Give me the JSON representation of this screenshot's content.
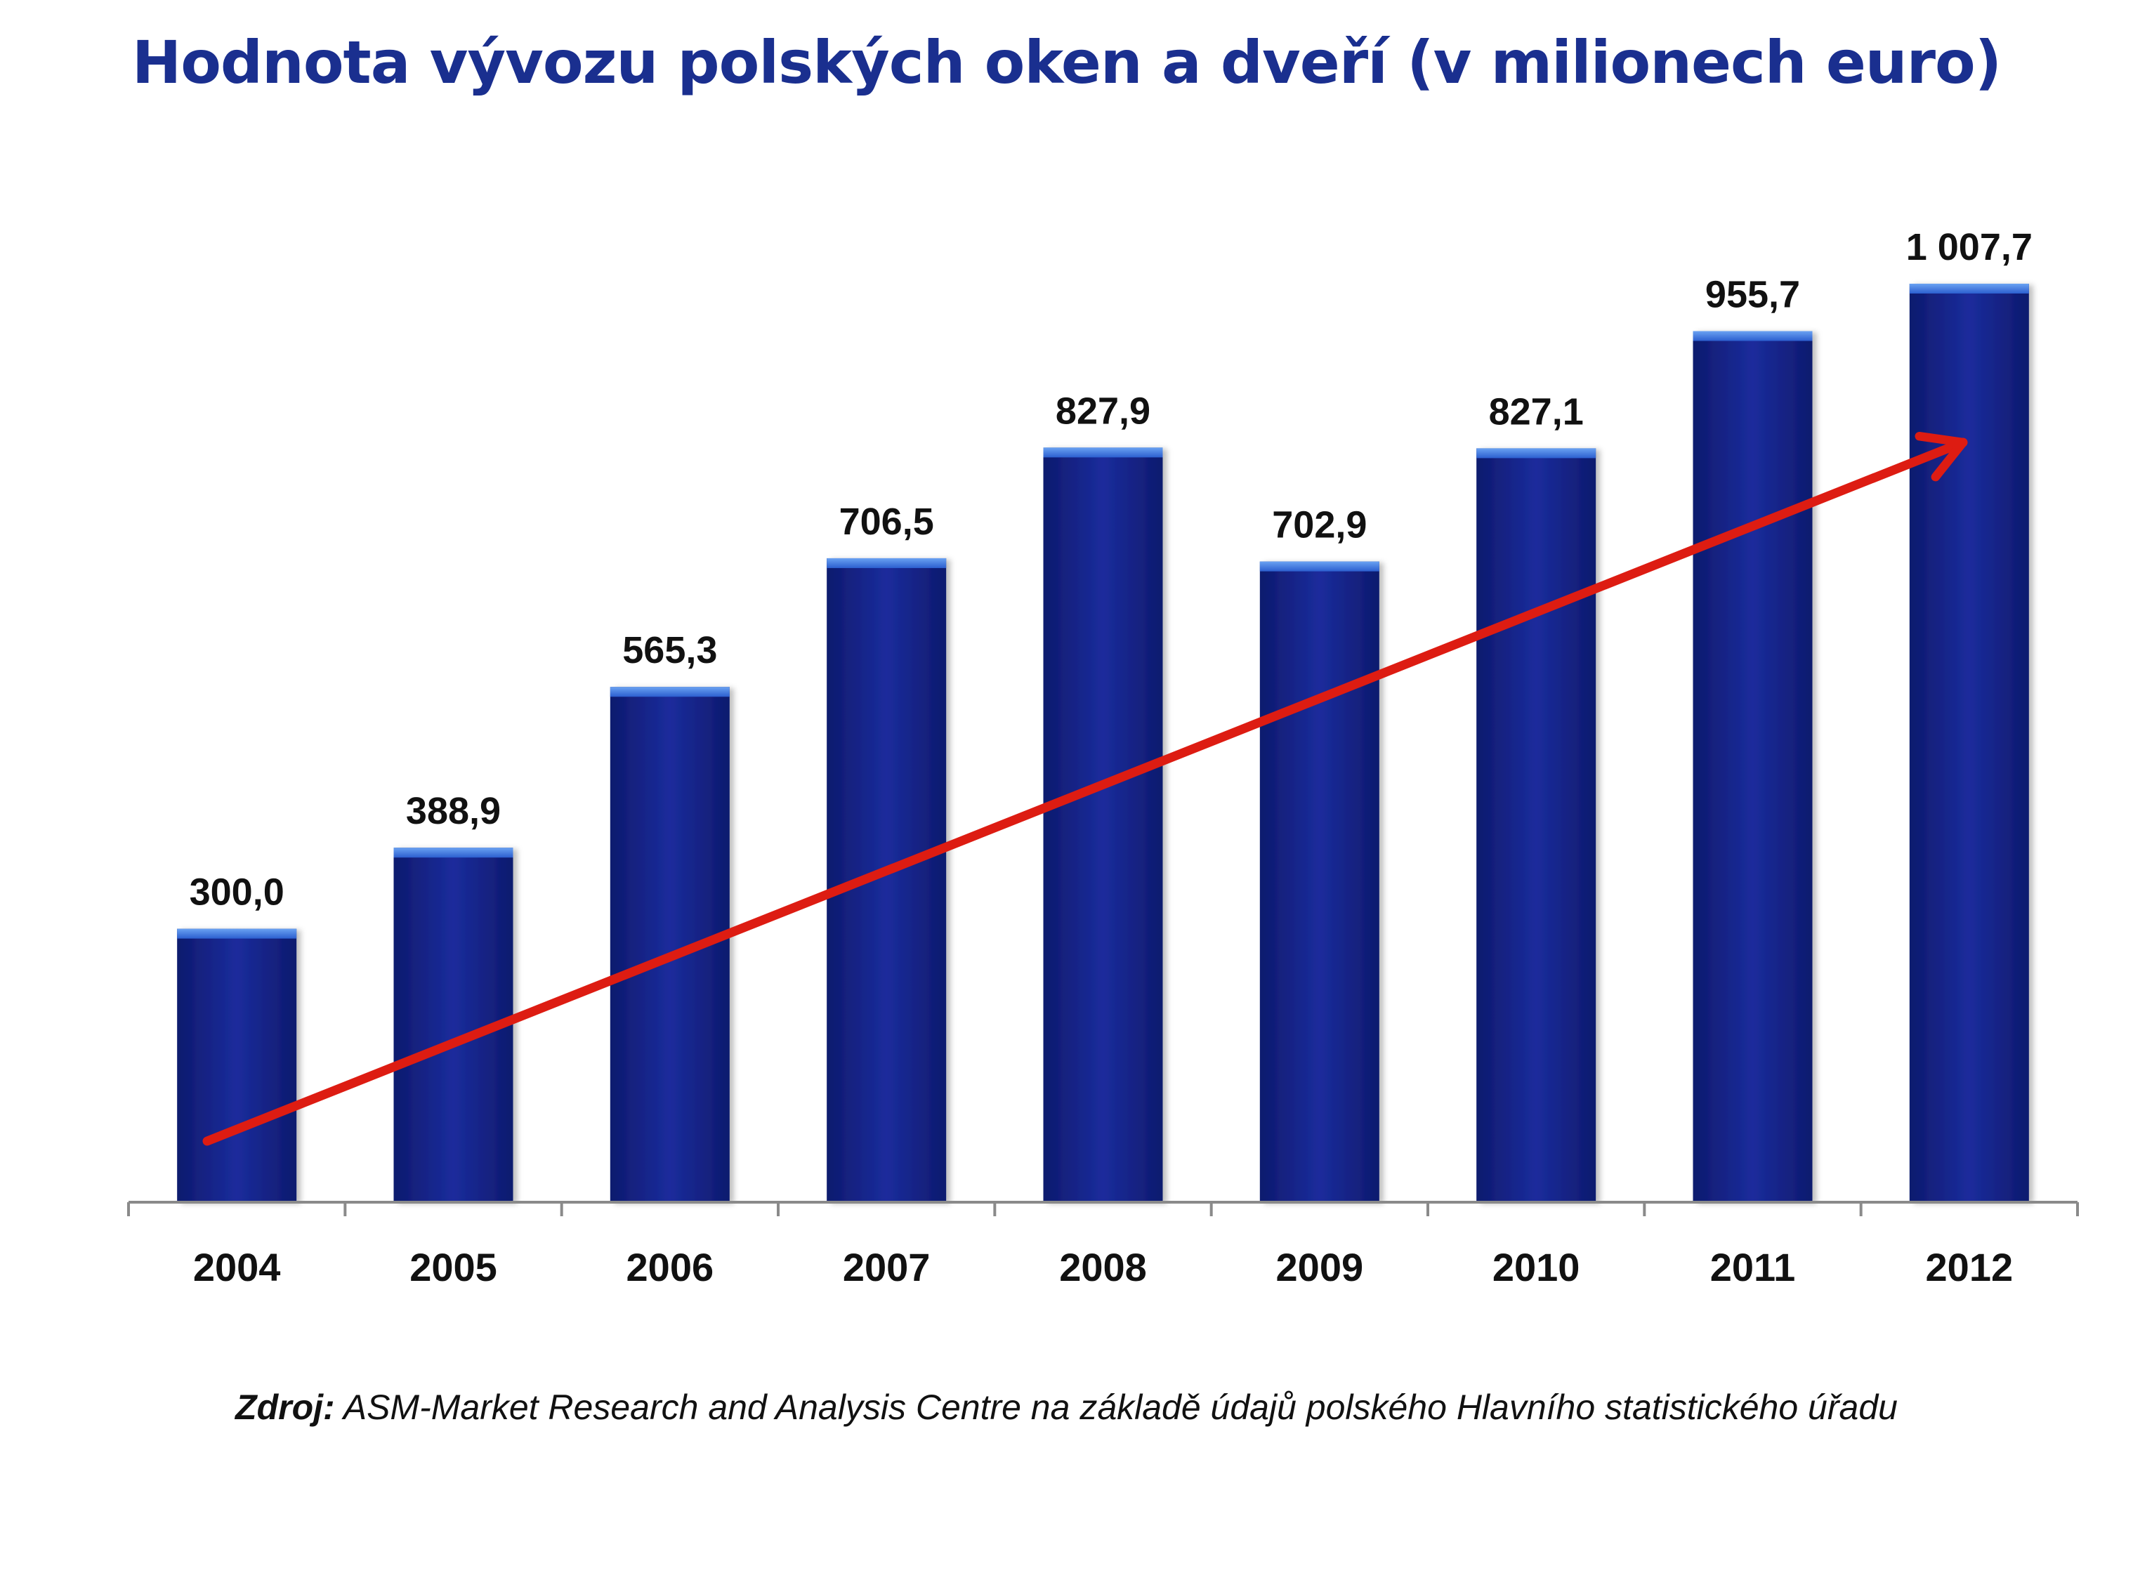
{
  "chart_data": {
    "type": "bar",
    "title": "Hodnota vývozu polských oken a dveří (v milionech euro)",
    "categories": [
      "2004",
      "2005",
      "2006",
      "2007",
      "2008",
      "2009",
      "2010",
      "2011",
      "2012"
    ],
    "values": [
      300.0,
      388.9,
      565.3,
      706.5,
      827.9,
      702.9,
      827.1,
      955.7,
      1007.7
    ],
    "data_labels": [
      "300,0",
      "388,9",
      "565,3",
      "706,5",
      "827,9",
      "702,9",
      "827,1",
      "955,7",
      "1 007,7"
    ],
    "xlabel": "",
    "ylabel": "",
    "ylim": [
      0,
      1007.7
    ],
    "grid": false,
    "legend": "none",
    "trend_arrow": true,
    "colors": {
      "bar": "#15228a",
      "bar_top": "#3a78e0",
      "arrow": "#dd1c12",
      "title": "#1a2f8f",
      "axis": "#8a8a8a"
    }
  },
  "source": {
    "label": "Zdroj:",
    "text": "ASM-Market Research and Analysis Centre na základě údajů polského Hlavního statistického úřadu"
  }
}
